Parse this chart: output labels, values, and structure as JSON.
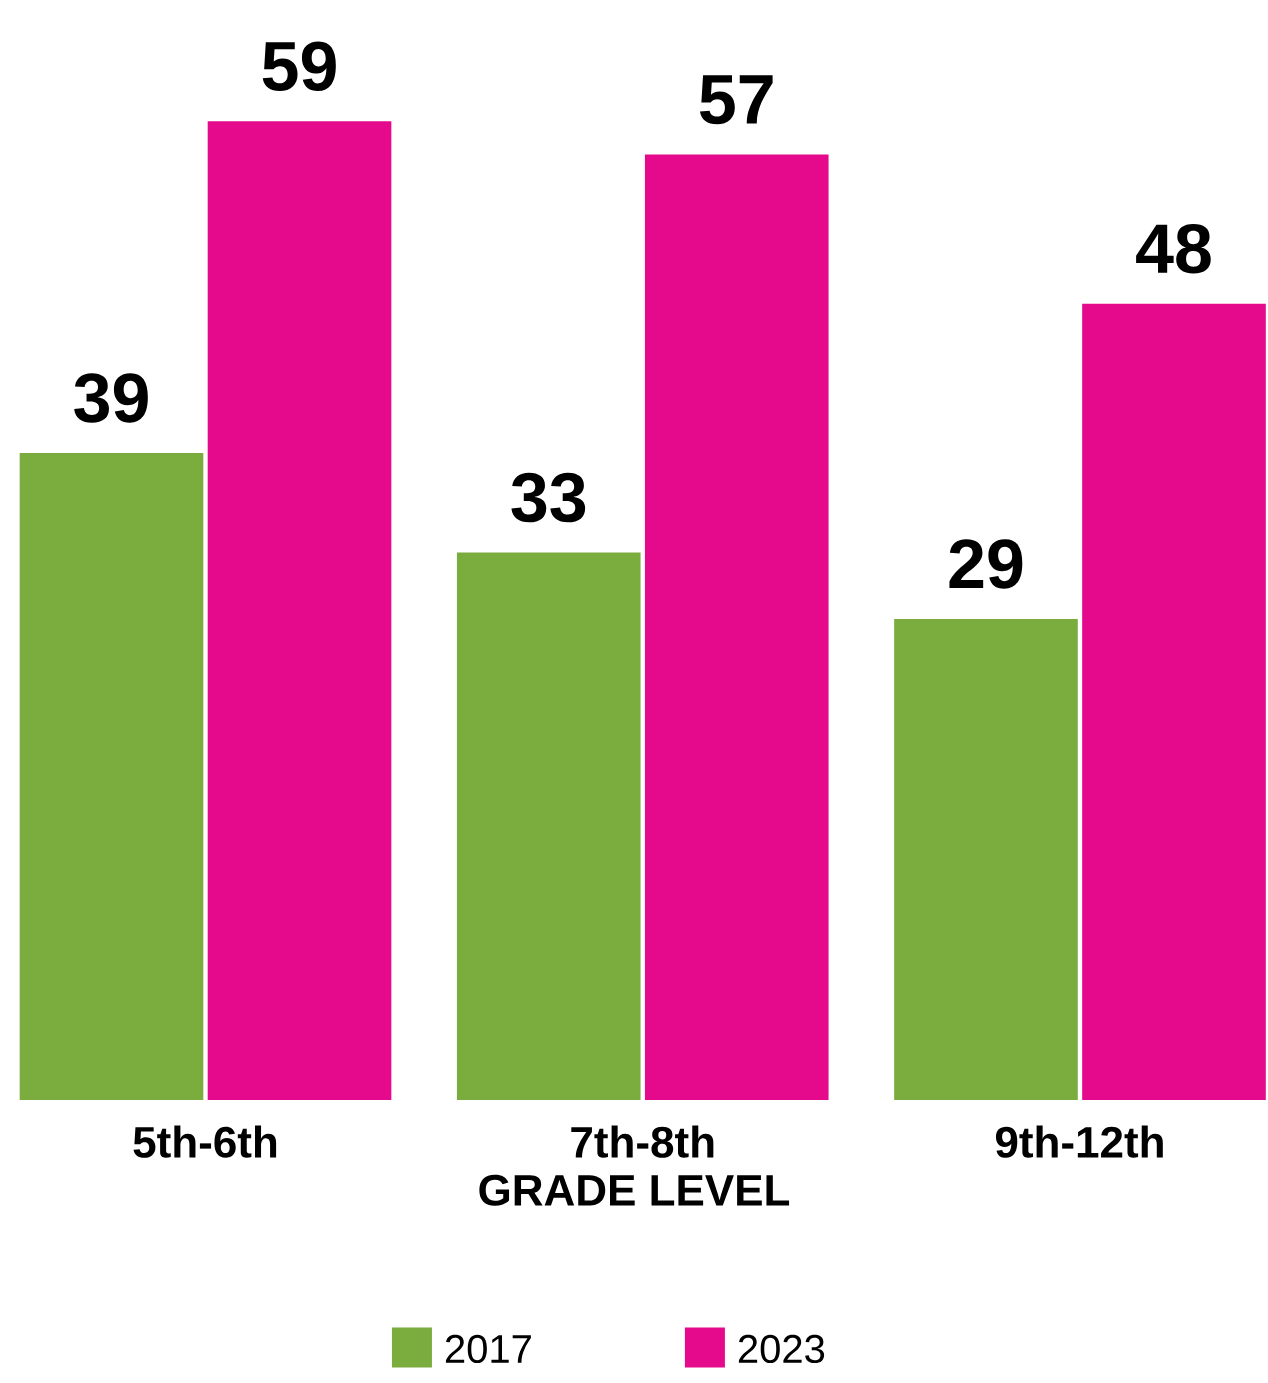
{
  "chart_data": {
    "type": "bar",
    "xlabel": "GRADE LEVEL",
    "categories": [
      "5th-6th",
      "7th-8th",
      "9th-12th"
    ],
    "series": [
      {
        "name": "2017",
        "color": "#7aac3e",
        "values": [
          39,
          33,
          29
        ]
      },
      {
        "name": "2023",
        "color": "#e5098c",
        "values": [
          59,
          57,
          48
        ]
      }
    ],
    "data_labels": true,
    "legend": "bottom"
  }
}
